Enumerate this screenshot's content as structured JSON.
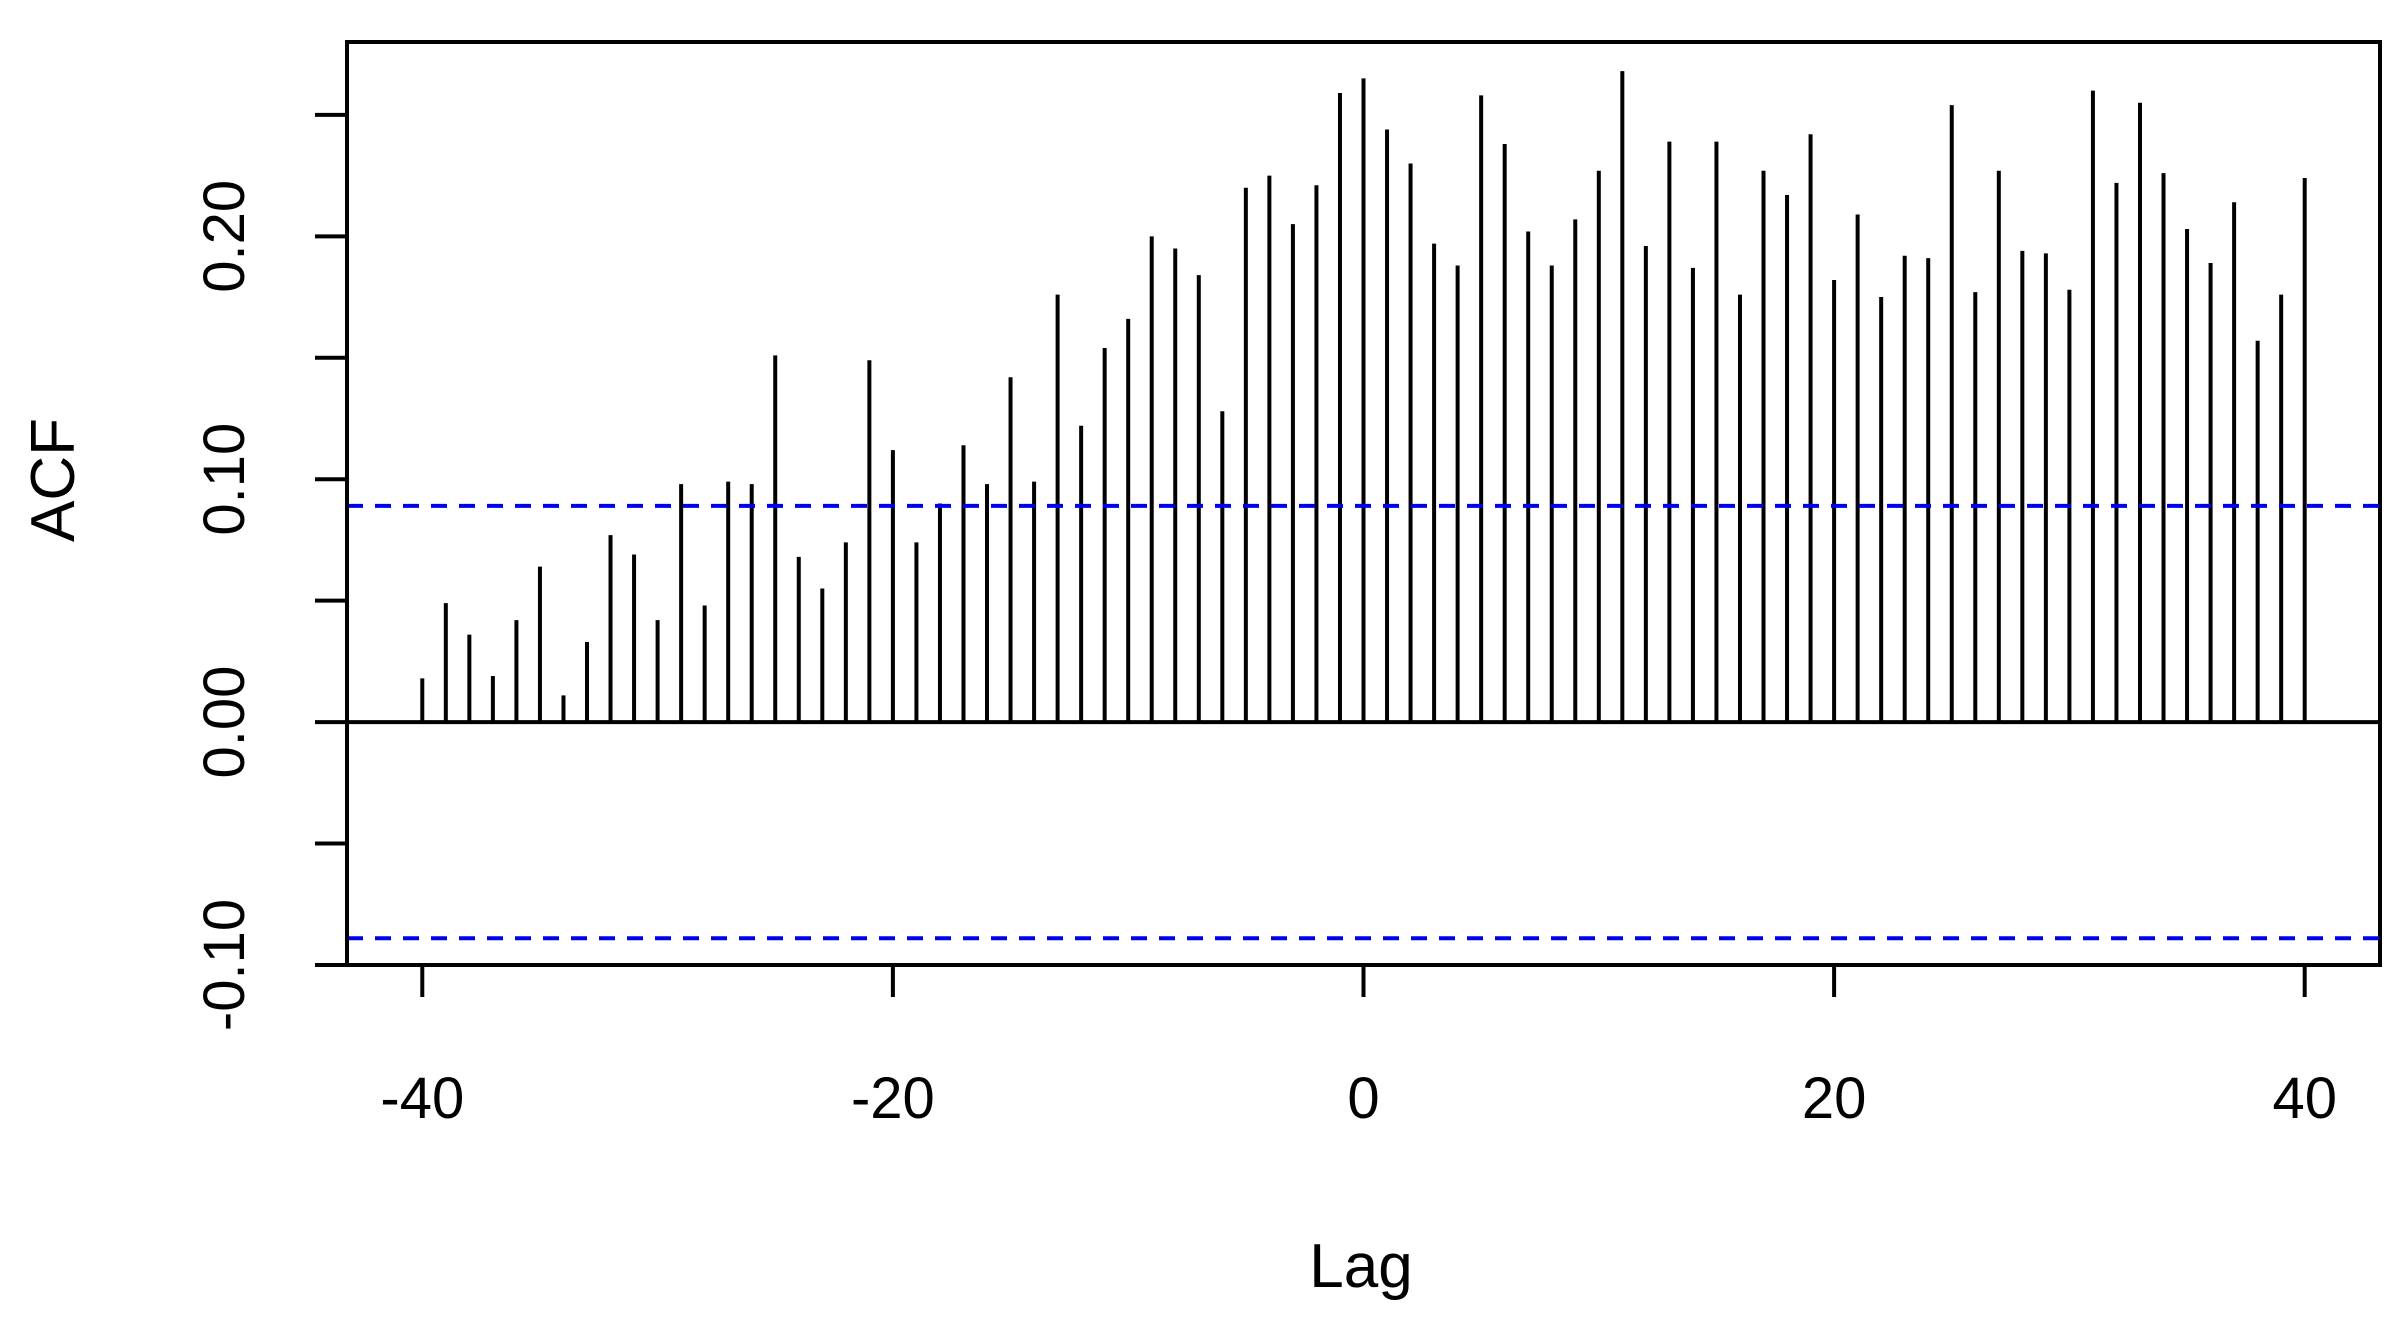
{
  "chart_data": {
    "type": "bar",
    "xlabel": "Lag",
    "ylabel": "ACF",
    "xlim": [
      -43.2,
      43.2
    ],
    "ylim": [
      -0.1,
      0.28
    ],
    "x_ticks": [
      -40,
      -20,
      0,
      20,
      40
    ],
    "x_tick_labels": [
      "-40",
      "-20",
      "0",
      "20",
      "40"
    ],
    "y_ticks": [
      -0.1,
      -0.05,
      0.0,
      0.05,
      0.1,
      0.15,
      0.2,
      0.25
    ],
    "y_tick_labels": [
      "-0.10",
      "",
      "0.00",
      "",
      "0.10",
      "",
      "0.20",
      ""
    ],
    "confidence_band": {
      "upper": 0.089,
      "lower": -0.089,
      "color": "#0000ee",
      "style": "dashed"
    },
    "zero_line": 0,
    "bar_color": "#000000",
    "grid": false,
    "lags": [
      -40,
      -39,
      -38,
      -37,
      -36,
      -35,
      -34,
      -33,
      -32,
      -31,
      -30,
      -29,
      -28,
      -27,
      -26,
      -25,
      -24,
      -23,
      -22,
      -21,
      -20,
      -19,
      -18,
      -17,
      -16,
      -15,
      -14,
      -13,
      -12,
      -11,
      -10,
      -9,
      -8,
      -7,
      -6,
      -5,
      -4,
      -3,
      -2,
      -1,
      0,
      1,
      2,
      3,
      4,
      5,
      6,
      7,
      8,
      9,
      10,
      11,
      12,
      13,
      14,
      15,
      16,
      17,
      18,
      19,
      20,
      21,
      22,
      23,
      24,
      25,
      26,
      27,
      28,
      29,
      30,
      31,
      32,
      33,
      34,
      35,
      36,
      37,
      38,
      39,
      40
    ],
    "values": [
      0.018,
      0.049,
      0.036,
      0.019,
      0.042,
      0.064,
      0.011,
      0.033,
      0.077,
      0.069,
      0.042,
      0.098,
      0.048,
      0.099,
      0.098,
      0.151,
      0.068,
      0.055,
      0.074,
      0.149,
      0.112,
      0.074,
      0.09,
      0.114,
      0.098,
      0.142,
      0.099,
      0.176,
      0.122,
      0.154,
      0.166,
      0.2,
      0.195,
      0.184,
      0.128,
      0.22,
      0.225,
      0.205,
      0.221,
      0.259,
      0.265,
      0.244,
      0.23,
      0.197,
      0.188,
      0.258,
      0.238,
      0.202,
      0.188,
      0.207,
      0.227,
      0.268,
      0.196,
      0.239,
      0.187,
      0.239,
      0.176,
      0.227,
      0.217,
      0.242,
      0.182,
      0.209,
      0.175,
      0.192,
      0.191,
      0.254,
      0.177,
      0.227,
      0.194,
      0.193,
      0.178,
      0.26,
      0.222,
      0.255,
      0.226,
      0.203,
      0.189,
      0.214,
      0.157,
      0.176,
      0.224
    ]
  }
}
